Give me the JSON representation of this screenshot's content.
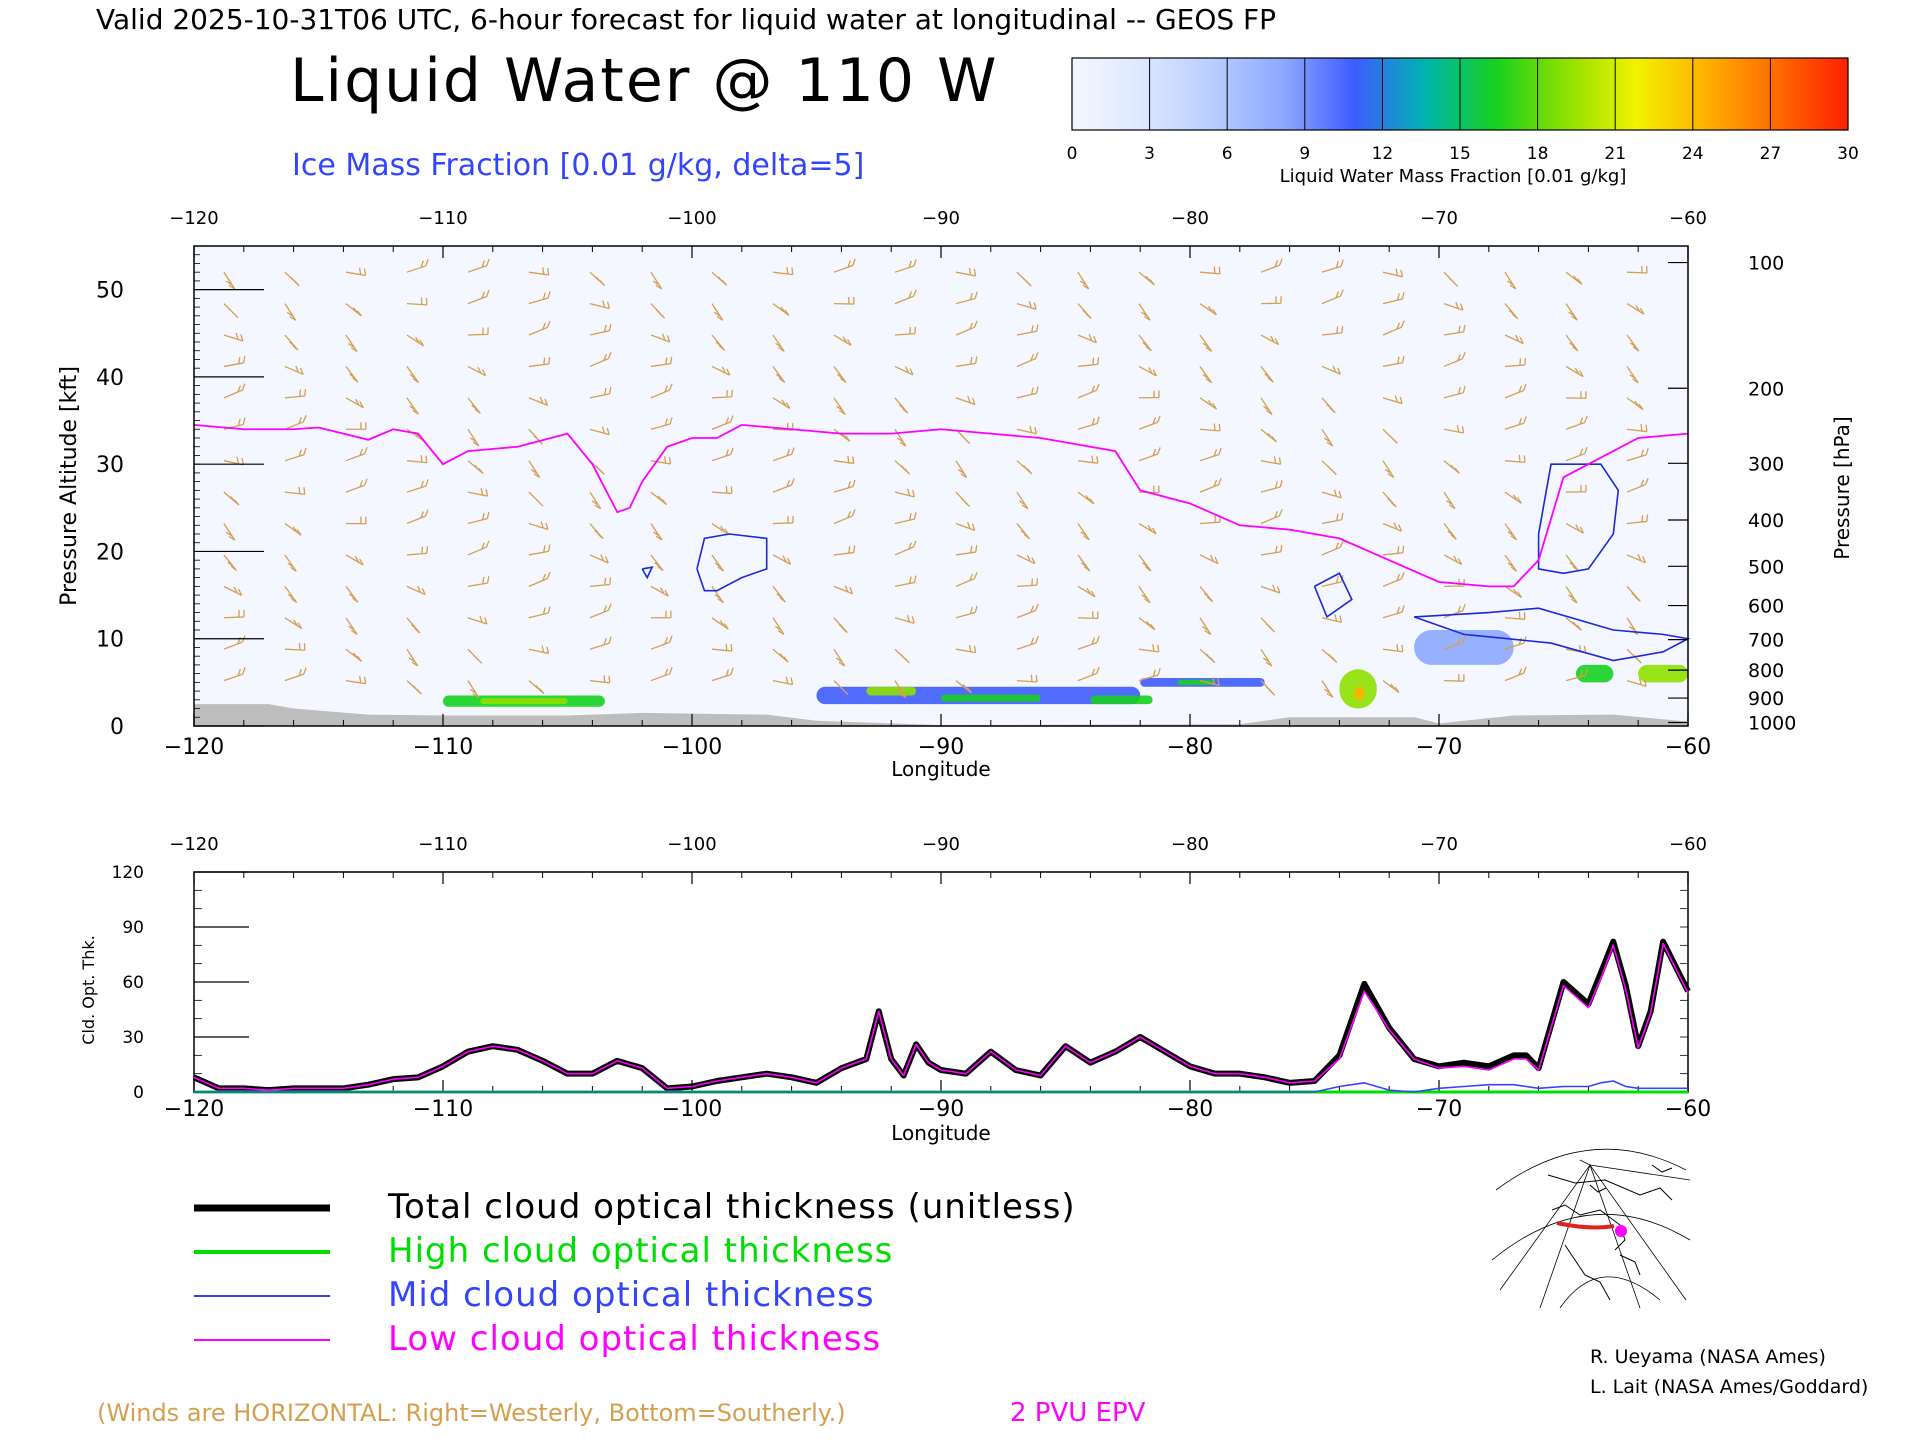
{
  "header": {
    "valid_line": "Valid 2025-10-31T06 UTC, 6-hour forecast for liquid water at longitudinal -- GEOS FP",
    "title": "Liquid Water @ 110 W",
    "subtitle": "Ice Mass Fraction [0.01 g/kg, delta=5]"
  },
  "colorbar": {
    "ticks": [
      "0",
      "3",
      "6",
      "9",
      "12",
      "15",
      "18",
      "21",
      "24",
      "27",
      "30"
    ],
    "label": "Liquid Water Mass Fraction [0.01 g/kg]",
    "colors": [
      "#f4f7ff",
      "#dde8ff",
      "#b8ccff",
      "#8ca8ff",
      "#3d5cff",
      "#00b4b0",
      "#16d020",
      "#8ee000",
      "#f2f200",
      "#ffb000",
      "#ff6a00",
      "#ff2000"
    ]
  },
  "credits": {
    "line1": "R. Ueyama (NASA Ames)",
    "line2": "L. Lait (NASA Ames/Goddard)"
  },
  "footer": {
    "winds_note": "(Winds are HORIZONTAL: Right=Westerly, Bottom=Southerly.)",
    "epv_label": "2 PVU EPV",
    "winds_color": "#d4a050",
    "epv_color": "#ff00ff"
  },
  "legend": {
    "items": [
      {
        "label": "Total cloud optical thickness (unitless)",
        "color": "#000000"
      },
      {
        "label": "High cloud optical thickness",
        "color": "#00dd00"
      },
      {
        "label": "Mid cloud optical thickness",
        "color": "#3344ff"
      },
      {
        "label": "Low cloud optical thickness",
        "color": "#ff00ff"
      }
    ]
  },
  "chart_data": [
    {
      "type": "heatmap",
      "title": "Liquid Water @ 110 W",
      "xlabel": "Longitude",
      "ylabel": "Pressure Altitude [kft]",
      "ylabel_right": "Pressure [hPa]",
      "xlim": [
        -120,
        -60
      ],
      "ylim": [
        0,
        55
      ],
      "x_ticks": [
        "-120",
        "-110",
        "-100",
        "-90",
        "-80",
        "-70",
        "-60"
      ],
      "y_ticks": [
        "0",
        "10",
        "20",
        "30",
        "40",
        "50"
      ],
      "pressure_ticks": [
        {
          "label": "100",
          "kft": 53.1
        },
        {
          "label": "200",
          "kft": 38.7
        },
        {
          "label": "300",
          "kft": 30.1
        },
        {
          "label": "400",
          "kft": 23.6
        },
        {
          "label": "500",
          "kft": 18.3
        },
        {
          "label": "600",
          "kft": 13.8
        },
        {
          "label": "700",
          "kft": 9.9
        },
        {
          "label": "800",
          "kft": 6.4
        },
        {
          "label": "900",
          "kft": 3.2
        },
        {
          "label": "1000",
          "kft": 0.4
        }
      ],
      "epv_2pvu": [
        [
          -120,
          34.5
        ],
        [
          -118,
          34.0
        ],
        [
          -116,
          34.0
        ],
        [
          -115,
          34.2
        ],
        [
          -114,
          33.5
        ],
        [
          -113,
          32.8
        ],
        [
          -112,
          34.0
        ],
        [
          -111,
          33.5
        ],
        [
          -110,
          30.0
        ],
        [
          -109,
          31.5
        ],
        [
          -107,
          32.0
        ],
        [
          -105,
          33.5
        ],
        [
          -104,
          30.0
        ],
        [
          -103,
          24.5
        ],
        [
          -102.5,
          25.0
        ],
        [
          -102,
          28.0
        ],
        [
          -101,
          32.0
        ],
        [
          -100,
          33.0
        ],
        [
          -99,
          33.0
        ],
        [
          -98,
          34.5
        ],
        [
          -96,
          34.0
        ],
        [
          -94,
          33.5
        ],
        [
          -92,
          33.5
        ],
        [
          -90,
          34.0
        ],
        [
          -88,
          33.5
        ],
        [
          -86,
          33.0
        ],
        [
          -84,
          32.0
        ],
        [
          -83,
          31.5
        ],
        [
          -82,
          27.0
        ],
        [
          -80,
          25.5
        ],
        [
          -78,
          23.0
        ],
        [
          -76,
          22.5
        ],
        [
          -74,
          21.5
        ],
        [
          -72,
          19.0
        ],
        [
          -70,
          16.5
        ],
        [
          -68,
          16.0
        ],
        [
          -67,
          16.0
        ],
        [
          -66,
          19.0
        ],
        [
          -65,
          28.5
        ],
        [
          -64,
          30.0
        ],
        [
          -62,
          33.0
        ],
        [
          -60,
          33.5
        ]
      ],
      "ice_contours": [
        [
          [
            -99.8,
            18
          ],
          [
            -99.5,
            21.5
          ],
          [
            -98.5,
            22
          ],
          [
            -97,
            21.5
          ],
          [
            -97,
            18
          ],
          [
            -98,
            17
          ],
          [
            -99,
            15.5
          ],
          [
            -99.5,
            15.5
          ],
          [
            -99.8,
            18
          ]
        ],
        [
          [
            -102,
            18
          ],
          [
            -101.8,
            17
          ],
          [
            -101.6,
            18.2
          ],
          [
            -102,
            18
          ]
        ],
        [
          [
            -66,
            22
          ],
          [
            -65.5,
            30
          ],
          [
            -63.5,
            30
          ],
          [
            -62.8,
            27
          ],
          [
            -63,
            22
          ],
          [
            -64,
            18
          ],
          [
            -65,
            17.5
          ],
          [
            -66,
            18
          ],
          [
            -66,
            22
          ]
        ],
        [
          [
            -75,
            16
          ],
          [
            -74,
            17.5
          ],
          [
            -73.5,
            14.5
          ],
          [
            -74.5,
            12.5
          ],
          [
            -75,
            16
          ]
        ],
        [
          [
            -71,
            12.5
          ],
          [
            -68,
            13
          ],
          [
            -66,
            13.5
          ],
          [
            -63,
            11
          ],
          [
            -61,
            10.5
          ],
          [
            -60,
            10
          ],
          [
            -61,
            8.5
          ],
          [
            -63,
            7.5
          ],
          [
            -65.5,
            9.5
          ],
          [
            -69,
            10.5
          ],
          [
            -71,
            12.5
          ]
        ]
      ],
      "liquid_cells": [
        {
          "lon": [
            -110,
            -103.5
          ],
          "kft": [
            2.2,
            3.5
          ],
          "level": 15
        },
        {
          "lon": [
            -108.5,
            -105
          ],
          "kft": [
            2.5,
            3.2
          ],
          "level": 18
        },
        {
          "lon": [
            -95,
            -82
          ],
          "kft": [
            2.5,
            4.5
          ],
          "level": 12
        },
        {
          "lon": [
            -93,
            -91
          ],
          "kft": [
            3.5,
            4.5
          ],
          "level": 18
        },
        {
          "lon": [
            -90,
            -86
          ],
          "kft": [
            2.8,
            3.6
          ],
          "level": 15
        },
        {
          "lon": [
            -84,
            -81.5
          ],
          "kft": [
            2.5,
            3.5
          ],
          "level": 15
        },
        {
          "lon": [
            -82,
            -77
          ],
          "kft": [
            4.5,
            5.5
          ],
          "level": 12
        },
        {
          "lon": [
            -80.5,
            -79
          ],
          "kft": [
            4.7,
            5.3
          ],
          "level": 15
        },
        {
          "lon": [
            -74,
            -72.5
          ],
          "kft": [
            2,
            6.5
          ],
          "level": 18
        },
        {
          "lon": [
            -73.4,
            -73.0
          ],
          "kft": [
            3,
            4.5
          ],
          "level": 24
        },
        {
          "lon": [
            -71,
            -67
          ],
          "kft": [
            7,
            11
          ],
          "level": 9
        },
        {
          "lon": [
            -64.5,
            -63
          ],
          "kft": [
            5,
            7
          ],
          "level": 15
        },
        {
          "lon": [
            -62,
            -60
          ],
          "kft": [
            5,
            7
          ],
          "level": 18
        }
      ],
      "terrain": [
        [
          -120,
          2.5
        ],
        [
          -117,
          2.5
        ],
        [
          -116,
          2.0
        ],
        [
          -113,
          1.3
        ],
        [
          -110,
          1.2
        ],
        [
          -105,
          1.2
        ],
        [
          -102,
          1.5
        ],
        [
          -97,
          1.3
        ],
        [
          -95,
          0.6
        ],
        [
          -90,
          0.1
        ],
        [
          -78,
          0.2
        ],
        [
          -76,
          1.0
        ],
        [
          -71,
          1.0
        ],
        [
          -70,
          0.3
        ],
        [
          -67,
          1.2
        ],
        [
          -63,
          1.3
        ],
        [
          -60,
          0.5
        ]
      ]
    },
    {
      "type": "line",
      "xlabel": "Longitude",
      "ylabel": "Cld. Opt. Thk.",
      "xlim": [
        -120,
        -60
      ],
      "ylim": [
        0,
        120
      ],
      "x_ticks": [
        "-120",
        "-110",
        "-100",
        "-90",
        "-80",
        "-70",
        "-60"
      ],
      "y_ticks": [
        "0",
        "30",
        "60",
        "90",
        "120"
      ],
      "x": [
        -120,
        -119,
        -118,
        -117,
        -116,
        -115,
        -114,
        -113,
        -112,
        -111,
        -110,
        -109,
        -108,
        -107,
        -106,
        -105,
        -104,
        -103,
        -102,
        -101,
        -100,
        -99,
        -98,
        -97,
        -96,
        -95,
        -94,
        -93,
        -92.5,
        -92,
        -91.5,
        -91,
        -90.5,
        -90,
        -89,
        -88,
        -87,
        -86,
        -85,
        -84,
        -83,
        -82,
        -81,
        -80,
        -79,
        -78,
        -77,
        -76,
        -75,
        -74,
        -73,
        -72,
        -71,
        -70,
        -69,
        -68,
        -67,
        -66.5,
        -66,
        -65,
        -64,
        -63.5,
        -63,
        -62.5,
        -62,
        -61.5,
        -61,
        -60
      ],
      "series": [
        {
          "name": "Total cloud optical thickness (unitless)",
          "color": "#000000",
          "values": [
            8,
            2,
            2,
            1,
            2,
            2,
            2,
            4,
            7,
            8,
            14,
            22,
            25,
            23,
            17,
            10,
            10,
            17,
            13,
            2,
            3,
            6,
            8,
            10,
            8,
            5,
            13,
            18,
            44,
            18,
            9,
            26,
            16,
            12,
            10,
            22,
            12,
            9,
            25,
            16,
            22,
            30,
            22,
            14,
            10,
            10,
            8,
            5,
            6,
            20,
            59,
            35,
            18,
            14,
            16,
            14,
            20,
            20,
            13,
            60,
            48,
            65,
            82,
            58,
            25,
            44,
            82,
            55
          ]
        },
        {
          "name": "High cloud optical thickness",
          "color": "#00dd00",
          "values": [
            0,
            0,
            0,
            0,
            0,
            0,
            0,
            0,
            0,
            0,
            0,
            0,
            0,
            0,
            0,
            0,
            0,
            0,
            0,
            0,
            0,
            0,
            0,
            0,
            0,
            0,
            0,
            0,
            0,
            0,
            0,
            0,
            0,
            0,
            0,
            0,
            0,
            0,
            0,
            0,
            0,
            0,
            0,
            0,
            0,
            0,
            0,
            0,
            0,
            0,
            0,
            0,
            0,
            0,
            0,
            0,
            0,
            0,
            0,
            0,
            0,
            0,
            0,
            0,
            0,
            0,
            0,
            0
          ]
        },
        {
          "name": "Mid cloud optical thickness",
          "color": "#3344ff",
          "values": [
            0,
            0,
            0,
            0,
            0,
            0,
            0,
            0,
            0,
            0,
            0,
            0,
            0,
            0,
            0,
            0,
            0,
            0,
            0,
            0,
            0,
            0,
            0,
            0,
            0,
            0,
            0,
            0,
            0,
            0,
            0,
            0,
            0,
            0,
            0,
            0,
            0,
            0,
            0,
            0,
            0,
            0,
            0,
            0,
            0,
            0,
            0,
            0,
            0,
            3,
            5,
            1,
            0,
            2,
            3,
            4,
            4,
            3,
            2,
            3,
            3,
            5,
            6,
            3,
            2,
            2,
            2,
            2
          ]
        },
        {
          "name": "Low cloud optical thickness",
          "color": "#ff00ff",
          "values": [
            8,
            2,
            2,
            1,
            2,
            2,
            2,
            4,
            7,
            8,
            14,
            22,
            25,
            23,
            17,
            10,
            10,
            17,
            13,
            2,
            3,
            6,
            8,
            10,
            8,
            5,
            13,
            18,
            44,
            18,
            9,
            26,
            16,
            12,
            10,
            22,
            12,
            9,
            25,
            16,
            22,
            30,
            22,
            14,
            10,
            10,
            8,
            5,
            6,
            18,
            55,
            34,
            18,
            13,
            14,
            12,
            18,
            18,
            12,
            58,
            46,
            62,
            80,
            56,
            24,
            43,
            81,
            54
          ]
        }
      ]
    }
  ],
  "map_inset": {
    "section_color": "#dd2222",
    "marker_color": "#ff00ff"
  }
}
